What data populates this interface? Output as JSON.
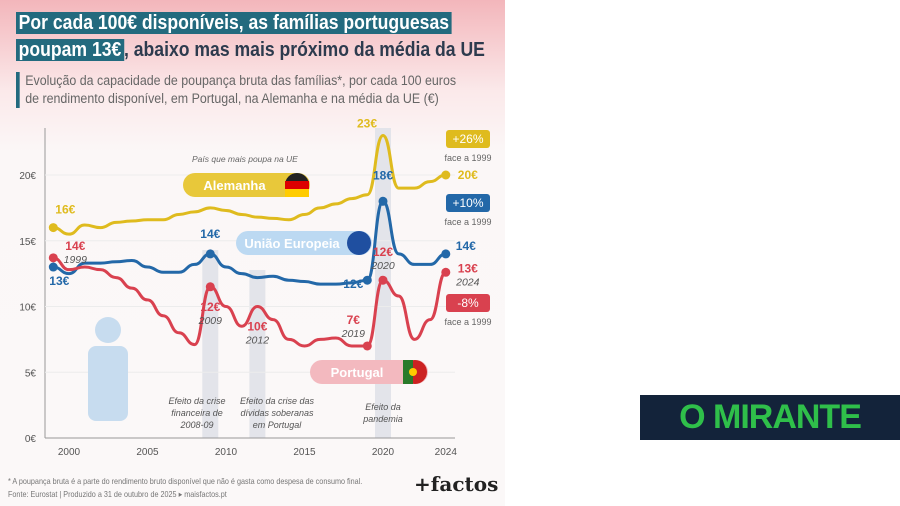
{
  "title_highlight": "Por cada 100€ disponíveis, as famílias portuguesas poupam 13€",
  "title_line1": "Por cada 100€ disponíveis, as famílias portuguesas",
  "title_line2_hl": "poupam 13€",
  "title_line2_rest": ", abaixo mas mais próximo da média da UE",
  "subtitle_1": "Evolução da capacidade de poupança bruta das famílias*, por cada 100 euros",
  "subtitle_2": "de rendimento disponível, em Portugal, na Alemanha e na média da UE (€)",
  "footnote": "* A poupança bruta é a parte do rendimento bruto disponível que não é gasta como despesa de consumo final.",
  "source": "Fonte: Eurostat | Produzido a 31 de outubro de 2025 ▸ maisfactos.pt",
  "brand": "+factos",
  "publisher_logo": "O MIRANTE",
  "chart_data": {
    "type": "line",
    "x": [
      1999,
      2000,
      2001,
      2002,
      2003,
      2004,
      2005,
      2006,
      2007,
      2008,
      2009,
      2010,
      2011,
      2012,
      2013,
      2014,
      2015,
      2016,
      2017,
      2018,
      2019,
      2020,
      2021,
      2022,
      2023,
      2024
    ],
    "xticks": [
      "2000",
      "2005",
      "2010",
      "2015",
      "2020",
      "2024"
    ],
    "yticks": [
      "0€",
      "5€",
      "10€",
      "15€",
      "20€"
    ],
    "ylim": [
      0,
      24
    ],
    "series": [
      {
        "name": "Alemanha",
        "color": "#dfbb1e",
        "values": [
          16,
          15.5,
          16.2,
          16,
          16.4,
          16.5,
          16.6,
          16.6,
          17,
          17.2,
          17.5,
          17.3,
          17,
          16.8,
          16.7,
          16.6,
          17,
          17.5,
          17.8,
          18.2,
          18.5,
          23,
          19,
          19,
          19.5,
          20
        ]
      },
      {
        "name": "União Europeia",
        "color": "#2368a8",
        "values": [
          13,
          12.5,
          13.3,
          13.3,
          13.4,
          13.5,
          13,
          12.6,
          12.6,
          13.2,
          14,
          13,
          12.5,
          12.2,
          12.3,
          12,
          11.9,
          11.7,
          11.7,
          11.8,
          12,
          18,
          14,
          13.2,
          13.2,
          14
        ]
      },
      {
        "name": "Portugal",
        "color": "#d9414f",
        "values": [
          13.7,
          12.8,
          13,
          12.8,
          12.2,
          11.4,
          10.5,
          9.3,
          8,
          7.1,
          11.5,
          10,
          8.5,
          10,
          9,
          7.5,
          7,
          7.5,
          7.6,
          7,
          7,
          12,
          10.8,
          7.5,
          9,
          12.6
        ]
      }
    ],
    "shaded_periods": [
      {
        "x": 2009,
        "label": "Efeito da crise financeira de 2008-09"
      },
      {
        "x": 2012,
        "label": "Efeito da crise das dívidas soberanas em Portugal"
      },
      {
        "x": 2020,
        "label": "Efeito da pandemia"
      }
    ],
    "annotations": [
      {
        "text": "16€",
        "series": 0,
        "x": 1999
      },
      {
        "text": "23€",
        "series": 0,
        "x": 2020
      },
      {
        "text": "20€",
        "series": 0,
        "x": 2024
      },
      {
        "text": "13€",
        "series": 1,
        "x": 1999
      },
      {
        "text": "14€",
        "series": 1,
        "x": 2009
      },
      {
        "text": "12€",
        "series": 1,
        "x": 2019
      },
      {
        "text": "18€",
        "series": 1,
        "x": 2020
      },
      {
        "text": "14€",
        "series": 1,
        "x": 2024
      },
      {
        "text": "14€",
        "sub": "1999",
        "series": 2,
        "x": 1999
      },
      {
        "text": "12€",
        "sub": "2009",
        "series": 2,
        "x": 2009
      },
      {
        "text": "10€",
        "sub": "2012",
        "series": 2,
        "x": 2012
      },
      {
        "text": "7€",
        "sub": "2019",
        "series": 2,
        "x": 2019
      },
      {
        "text": "12€",
        "sub": "2020",
        "series": 2,
        "x": 2020
      },
      {
        "text": "13€",
        "sub": "2024",
        "series": 2,
        "x": 2024
      }
    ],
    "badges": [
      {
        "text": "+26%",
        "sub": "face a 1999",
        "color": "#dfbb1e"
      },
      {
        "text": "+10%",
        "sub": "face a 1999",
        "color": "#2368a8"
      },
      {
        "text": "-8%",
        "sub": "face a 1999",
        "color": "#d9414f"
      }
    ],
    "germany_note": "País que mais poupa na UE"
  }
}
